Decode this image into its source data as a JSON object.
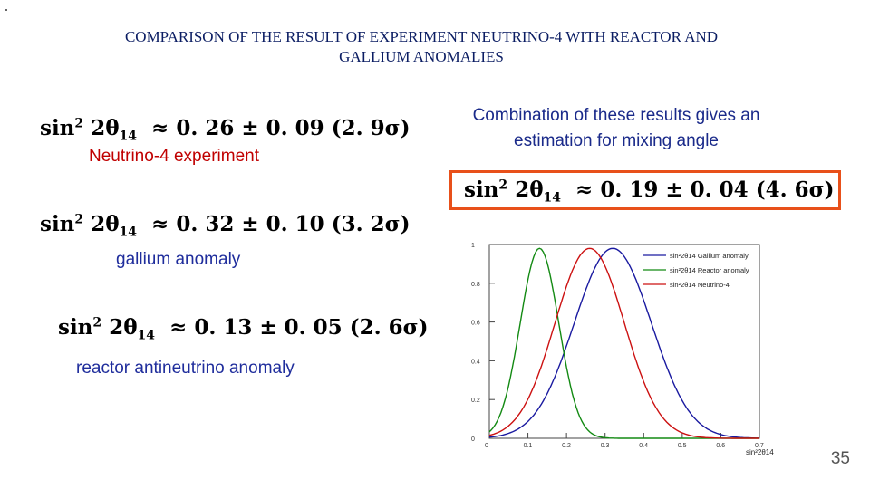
{
  "title_line1": "COMPARISON OF THE RESULT OF EXPERIMENT NEUTRINO-4 WITH REACTOR AND",
  "title_line2": "GALLIUM ANOMALIES",
  "results": [
    {
      "value": "0. 26",
      "error": "0. 09",
      "sigma": "(2. 9σ)",
      "label": "Neutrino-4 experiment"
    },
    {
      "value": "0. 32",
      "error": "0. 10",
      "sigma": "(3. 2σ)",
      "label": "gallium anomaly"
    },
    {
      "value": "0. 13",
      "error": "0. 05",
      "sigma": "(2. 6σ)",
      "label": "reactor antineutrino anomaly"
    }
  ],
  "formula_prefix": "sin",
  "formula_theta": "2θ",
  "combination": {
    "text_line1": "Combination of these results gives an",
    "text_line2": "estimation for mixing angle",
    "value": "0. 19",
    "error": "0. 04",
    "sigma": "(4. 6σ)"
  },
  "slide_number": "35",
  "chart_data": {
    "type": "line",
    "xlabel": "sin²2θ14",
    "xlim": [
      0,
      0.7
    ],
    "ylim": [
      0,
      1.0
    ],
    "x_ticks": [
      "0",
      "0.1",
      "0.2",
      "0.3",
      "0.4",
      "0.5",
      "0.6",
      "0.7"
    ],
    "y_ticks": [
      "0",
      "0.2",
      "0.4",
      "0.6",
      "0.8",
      "1"
    ],
    "legend_position": "top-right",
    "series": [
      {
        "name": "sin²2θ14 Gallium anomaly",
        "color": "#1a1aa0",
        "mean": 0.32,
        "sigma": 0.1,
        "peak": 0.98
      },
      {
        "name": "sin²2θ14 Reactor anomaly",
        "color": "#138a13",
        "mean": 0.13,
        "sigma": 0.05,
        "peak": 0.98
      },
      {
        "name": "sin²2θ14 Neutrino-4",
        "color": "#cc1111",
        "mean": 0.26,
        "sigma": 0.09,
        "peak": 0.98
      }
    ]
  }
}
